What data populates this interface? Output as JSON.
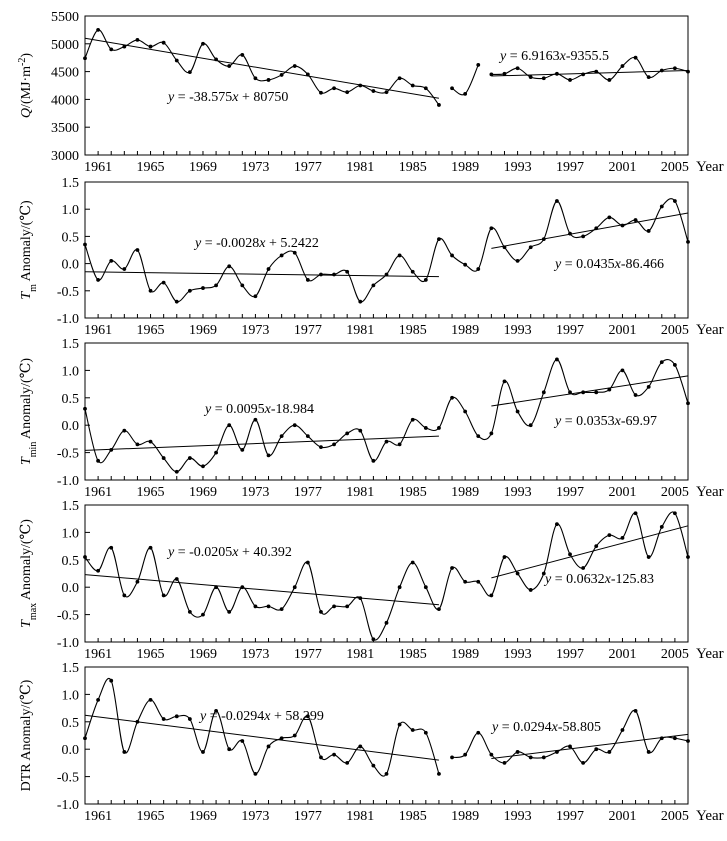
{
  "colors": {
    "line": "#000000",
    "background": "#ffffff"
  },
  "chart_data": [
    {
      "type": "line",
      "title": "",
      "ylabel": "Q/(MJ·m⁻²)",
      "ylabel_html": [
        "Q",
        "/(MJ·m",
        "-2",
        ")"
      ],
      "xlabel": "Year",
      "xlim": [
        1960,
        2006
      ],
      "ylim": [
        3000,
        5500
      ],
      "yticks": [
        3000,
        3500,
        4000,
        4500,
        5000,
        5500
      ],
      "ytick_labels": [
        "3000",
        "3500",
        "4000",
        "4500",
        "5000",
        "5500"
      ],
      "xticks": [
        1961,
        1965,
        1969,
        1973,
        1977,
        1981,
        1985,
        1989,
        1993,
        1997,
        2001,
        2005
      ],
      "xtick_labels": [
        "1961",
        "1965",
        "1969",
        "1973",
        "1977",
        "1981",
        "1985",
        "1989",
        "1993",
        "1997",
        "2001",
        "2005"
      ],
      "segments": [
        {
          "x": [
            1960,
            1961,
            1962,
            1963,
            1964,
            1965,
            1966,
            1967,
            1968,
            1969,
            1970,
            1971,
            1972,
            1973,
            1974,
            1975,
            1976,
            1977,
            1978,
            1979,
            1980,
            1981,
            1982,
            1983,
            1984,
            1985,
            1986,
            1987
          ],
          "y": [
            4740,
            5250,
            4900,
            4950,
            5070,
            4950,
            5020,
            4700,
            4490,
            5000,
            4720,
            4600,
            4800,
            4380,
            4350,
            4440,
            4600,
            4450,
            4120,
            4200,
            4130,
            4250,
            4150,
            4130,
            4380,
            4250,
            4200,
            3900
          ]
        },
        {
          "x": [
            1988,
            1989,
            1990
          ],
          "y": [
            4200,
            4100,
            4620
          ]
        },
        {
          "x": [
            1991,
            1992,
            1993,
            1994,
            1995,
            1996,
            1997,
            1998,
            1999,
            2000,
            2001,
            2002,
            2003,
            2004,
            2005,
            2006
          ],
          "y": [
            4450,
            4460,
            4560,
            4400,
            4380,
            4460,
            4350,
            4450,
            4500,
            4350,
            4600,
            4750,
            4400,
            4520,
            4560,
            4500
          ]
        }
      ],
      "trends": [
        {
          "label": "y = -38.575x + 80750",
          "label_parts": [
            "y",
            " = -38.575",
            "x",
            " + 80750"
          ],
          "x": [
            1960,
            1987
          ],
          "y": [
            5100,
            4020
          ]
        },
        {
          "label": "y = 6.9163x-9355.5",
          "label_parts": [
            "y",
            " = 6.9163",
            "x",
            "-9355.5"
          ],
          "x": [
            1991,
            2006
          ],
          "y": [
            4420,
            4520
          ]
        }
      ]
    },
    {
      "type": "line",
      "title": "",
      "ylabel": "Tm Anomaly/(℃)",
      "ylabel_html": [
        "T",
        "m",
        " Anomaly/(℃)"
      ],
      "xlabel": "Year",
      "xlim": [
        1960,
        2006
      ],
      "ylim": [
        -1.0,
        1.5
      ],
      "yticks": [
        -1.0,
        -0.5,
        0.0,
        0.5,
        1.0,
        1.5
      ],
      "ytick_labels": [
        "-1.0",
        "-0.5",
        "0.0",
        "0.5",
        "1.0",
        "1.5"
      ],
      "xticks": [
        1961,
        1965,
        1969,
        1973,
        1977,
        1981,
        1985,
        1989,
        1993,
        1997,
        2001,
        2005
      ],
      "xtick_labels": [
        "1961",
        "1965",
        "1969",
        "1973",
        "1977",
        "1981",
        "1985",
        "1989",
        "1993",
        "1997",
        "2001",
        "2005"
      ],
      "segments": [
        {
          "x": [
            1960,
            1961,
            1962,
            1963,
            1964,
            1965,
            1966,
            1967,
            1968,
            1969,
            1970,
            1971,
            1972,
            1973,
            1974,
            1975,
            1976,
            1977,
            1978,
            1979,
            1980,
            1981,
            1982,
            1983,
            1984,
            1985,
            1986,
            1987,
            1988,
            1989,
            1990,
            1991,
            1992,
            1993,
            1994,
            1995,
            1996,
            1997,
            1998,
            1999,
            2000,
            2001,
            2002,
            2003,
            2004,
            2005,
            2006
          ],
          "y": [
            0.35,
            -0.3,
            0.05,
            -0.1,
            0.25,
            -0.5,
            -0.35,
            -0.7,
            -0.5,
            -0.45,
            -0.4,
            -0.05,
            -0.4,
            -0.6,
            -0.1,
            0.15,
            0.2,
            -0.3,
            -0.2,
            -0.2,
            -0.15,
            -0.7,
            -0.4,
            -0.2,
            0.15,
            -0.15,
            -0.3,
            0.45,
            0.15,
            -0.02,
            -0.1,
            0.65,
            0.3,
            0.05,
            0.3,
            0.45,
            1.15,
            0.55,
            0.5,
            0.65,
            0.85,
            0.7,
            0.8,
            0.6,
            1.05,
            1.15,
            0.4
          ]
        }
      ],
      "trends": [
        {
          "label": "y = -0.0028x + 5.2422",
          "label_parts": [
            "y",
            " = -0.0028",
            "x",
            " + 5.2422"
          ],
          "x": [
            1960,
            1987
          ],
          "y": [
            -0.15,
            -0.24
          ]
        },
        {
          "label": "y = 0.0435x-86.466",
          "label_parts": [
            "y",
            " = 0.0435",
            "x",
            "-86.466"
          ],
          "x": [
            1991,
            2006
          ],
          "y": [
            0.28,
            0.93
          ]
        }
      ]
    },
    {
      "type": "line",
      "title": "",
      "ylabel": "Tmin Anomaly/(℃)",
      "ylabel_html": [
        "T",
        "min",
        " Anomaly/(℃)"
      ],
      "xlabel": "Year",
      "xlim": [
        1960,
        2006
      ],
      "ylim": [
        -1.0,
        1.5
      ],
      "yticks": [
        -1.0,
        -0.5,
        0.0,
        0.5,
        1.0,
        1.5
      ],
      "ytick_labels": [
        "-1.0",
        "-0.5",
        "0.0",
        "0.5",
        "1.0",
        "1.5"
      ],
      "xticks": [
        1961,
        1965,
        1969,
        1973,
        1977,
        1981,
        1985,
        1989,
        1993,
        1997,
        2001,
        2005
      ],
      "xtick_labels": [
        "1961",
        "1965",
        "1969",
        "1973",
        "1977",
        "1981",
        "1985",
        "1989",
        "1993",
        "1997",
        "2001",
        "2005"
      ],
      "segments": [
        {
          "x": [
            1960,
            1961,
            1962,
            1963,
            1964,
            1965,
            1966,
            1967,
            1968,
            1969,
            1970,
            1971,
            1972,
            1973,
            1974,
            1975,
            1976,
            1977,
            1978,
            1979,
            1980,
            1981,
            1982,
            1983,
            1984,
            1985,
            1986,
            1987,
            1988,
            1989,
            1990,
            1991,
            1992,
            1993,
            1994,
            1995,
            1996,
            1997,
            1998,
            1999,
            2000,
            2001,
            2002,
            2003,
            2004,
            2005,
            2006
          ],
          "y": [
            0.3,
            -0.65,
            -0.45,
            -0.1,
            -0.35,
            -0.3,
            -0.6,
            -0.85,
            -0.6,
            -0.75,
            -0.5,
            0.0,
            -0.45,
            0.1,
            -0.55,
            -0.2,
            0.0,
            -0.2,
            -0.4,
            -0.35,
            -0.15,
            -0.1,
            -0.65,
            -0.3,
            -0.35,
            0.1,
            -0.05,
            -0.05,
            0.5,
            0.25,
            -0.2,
            -0.15,
            0.8,
            0.25,
            0.0,
            0.6,
            1.2,
            0.6,
            0.6,
            0.6,
            0.65,
            1.0,
            0.55,
            0.7,
            1.15,
            1.1,
            0.4
          ]
        }
      ],
      "trends": [
        {
          "label": "y = 0.0095x-18.984",
          "label_parts": [
            "y",
            " = 0.0095",
            "x",
            "-18.984"
          ],
          "x": [
            1960,
            1987
          ],
          "y": [
            -0.46,
            -0.2
          ]
        },
        {
          "label": "y = 0.0353x-69.97",
          "label_parts": [
            "y",
            " = 0.0353",
            "x",
            "-69.97"
          ],
          "x": [
            1991,
            2006
          ],
          "y": [
            0.35,
            0.9
          ]
        }
      ]
    },
    {
      "type": "line",
      "title": "",
      "ylabel": "Tmax Anomaly/(℃)",
      "ylabel_html": [
        "T",
        "max",
        " Anomaly/(℃)"
      ],
      "xlabel": "Year",
      "xlim": [
        1960,
        2006
      ],
      "ylim": [
        -1.0,
        1.5
      ],
      "yticks": [
        -1.0,
        -0.5,
        0.0,
        0.5,
        1.0,
        1.5
      ],
      "ytick_labels": [
        "-1.0",
        "-0.5",
        "0.0",
        "0.5",
        "1.0",
        "1.5"
      ],
      "xticks": [
        1961,
        1965,
        1969,
        1973,
        1977,
        1981,
        1985,
        1989,
        1993,
        1997,
        2001,
        2005
      ],
      "xtick_labels": [
        "1961",
        "1965",
        "1969",
        "1973",
        "1977",
        "1981",
        "1985",
        "1989",
        "1993",
        "1997",
        "2001",
        "2005"
      ],
      "segments": [
        {
          "x": [
            1960,
            1961,
            1962,
            1963,
            1964,
            1965,
            1966,
            1967,
            1968,
            1969,
            1970,
            1971,
            1972,
            1973,
            1974,
            1975,
            1976,
            1977,
            1978,
            1979,
            1980,
            1981,
            1982,
            1983,
            1984,
            1985,
            1986,
            1987,
            1988,
            1989,
            1990,
            1991,
            1992,
            1993,
            1994,
            1995,
            1996,
            1997,
            1998,
            1999,
            2000,
            2001,
            2002,
            2003,
            2004,
            2005,
            2006
          ],
          "y": [
            0.55,
            0.3,
            0.72,
            -0.15,
            0.1,
            0.72,
            -0.15,
            0.15,
            -0.45,
            -0.5,
            0.0,
            -0.45,
            0.0,
            -0.35,
            -0.35,
            -0.4,
            0.0,
            0.45,
            -0.45,
            -0.35,
            -0.35,
            -0.2,
            -0.95,
            -0.65,
            0.0,
            0.45,
            0.0,
            -0.4,
            0.35,
            0.1,
            0.1,
            -0.15,
            0.55,
            0.25,
            -0.05,
            0.25,
            1.15,
            0.6,
            0.35,
            0.75,
            0.95,
            0.9,
            1.35,
            0.55,
            1.1,
            1.35,
            0.55
          ]
        }
      ],
      "trends": [
        {
          "label": "y = -0.0205x + 40.392",
          "label_parts": [
            "y",
            " = -0.0205",
            "x",
            " + 40.392"
          ],
          "x": [
            1960,
            1987
          ],
          "y": [
            0.23,
            -0.32
          ]
        },
        {
          "label": "y = 0.0632x-125.83",
          "label_parts": [
            "y",
            " = 0.0632",
            "x",
            "-125.83"
          ],
          "x": [
            1991,
            2006
          ],
          "y": [
            0.17,
            1.12
          ]
        }
      ]
    },
    {
      "type": "line",
      "title": "",
      "ylabel": "DTR Anomaly/(℃)",
      "ylabel_html": [
        "DTR",
        "",
        " Anomaly/(℃)"
      ],
      "xlabel": "Year",
      "xlim": [
        1960,
        2006
      ],
      "ylim": [
        -1.0,
        1.5
      ],
      "yticks": [
        -1.0,
        -0.5,
        0.0,
        0.5,
        1.0,
        1.5
      ],
      "ytick_labels": [
        "-1.0",
        "-0.5",
        "0.0",
        "0.5",
        "1.0",
        "1.5"
      ],
      "xticks": [
        1961,
        1965,
        1969,
        1973,
        1977,
        1981,
        1985,
        1989,
        1993,
        1997,
        2001,
        2005
      ],
      "xtick_labels": [
        "1961",
        "1965",
        "1969",
        "1973",
        "1977",
        "1981",
        "1985",
        "1989",
        "1993",
        "1997",
        "2001",
        "2005"
      ],
      "segments": [
        {
          "x": [
            1960,
            1961,
            1962,
            1963,
            1964,
            1965,
            1966,
            1967,
            1968,
            1969,
            1970,
            1971,
            1972,
            1973,
            1974,
            1975,
            1976,
            1977,
            1978,
            1979,
            1980,
            1981,
            1982,
            1983,
            1984,
            1985,
            1986,
            1987
          ],
          "y": [
            0.2,
            0.9,
            1.25,
            -0.05,
            0.5,
            0.9,
            0.55,
            0.6,
            0.55,
            -0.05,
            0.7,
            0.0,
            0.15,
            -0.45,
            0.05,
            0.2,
            0.25,
            0.6,
            -0.15,
            -0.1,
            -0.25,
            0.05,
            -0.3,
            -0.45,
            0.45,
            0.35,
            0.3,
            -0.45
          ]
        },
        {
          "x": [
            1988,
            1989,
            1990,
            1991,
            1992,
            1993,
            1994,
            1995,
            1996,
            1997,
            1998,
            1999,
            2000,
            2001,
            2002,
            2003,
            2004,
            2005,
            2006
          ],
          "y": [
            -0.15,
            -0.1,
            0.3,
            -0.1,
            -0.25,
            -0.05,
            -0.15,
            -0.15,
            -0.05,
            0.05,
            -0.25,
            0.0,
            -0.05,
            0.35,
            0.7,
            -0.05,
            0.2,
            0.2,
            0.15
          ]
        }
      ],
      "trends": [
        {
          "label": "y = -0.0294x + 58.299",
          "label_parts": [
            "y",
            " = -0.0294",
            "x",
            " + 58.299"
          ],
          "x": [
            1960,
            1987
          ],
          "y": [
            0.62,
            -0.2
          ]
        },
        {
          "label": "y = 0.0294x-58.805",
          "label_parts": [
            "y",
            " = 0.0294",
            "x",
            "-58.805"
          ],
          "x": [
            1991,
            2006
          ],
          "y": [
            -0.17,
            0.27
          ]
        }
      ]
    }
  ]
}
